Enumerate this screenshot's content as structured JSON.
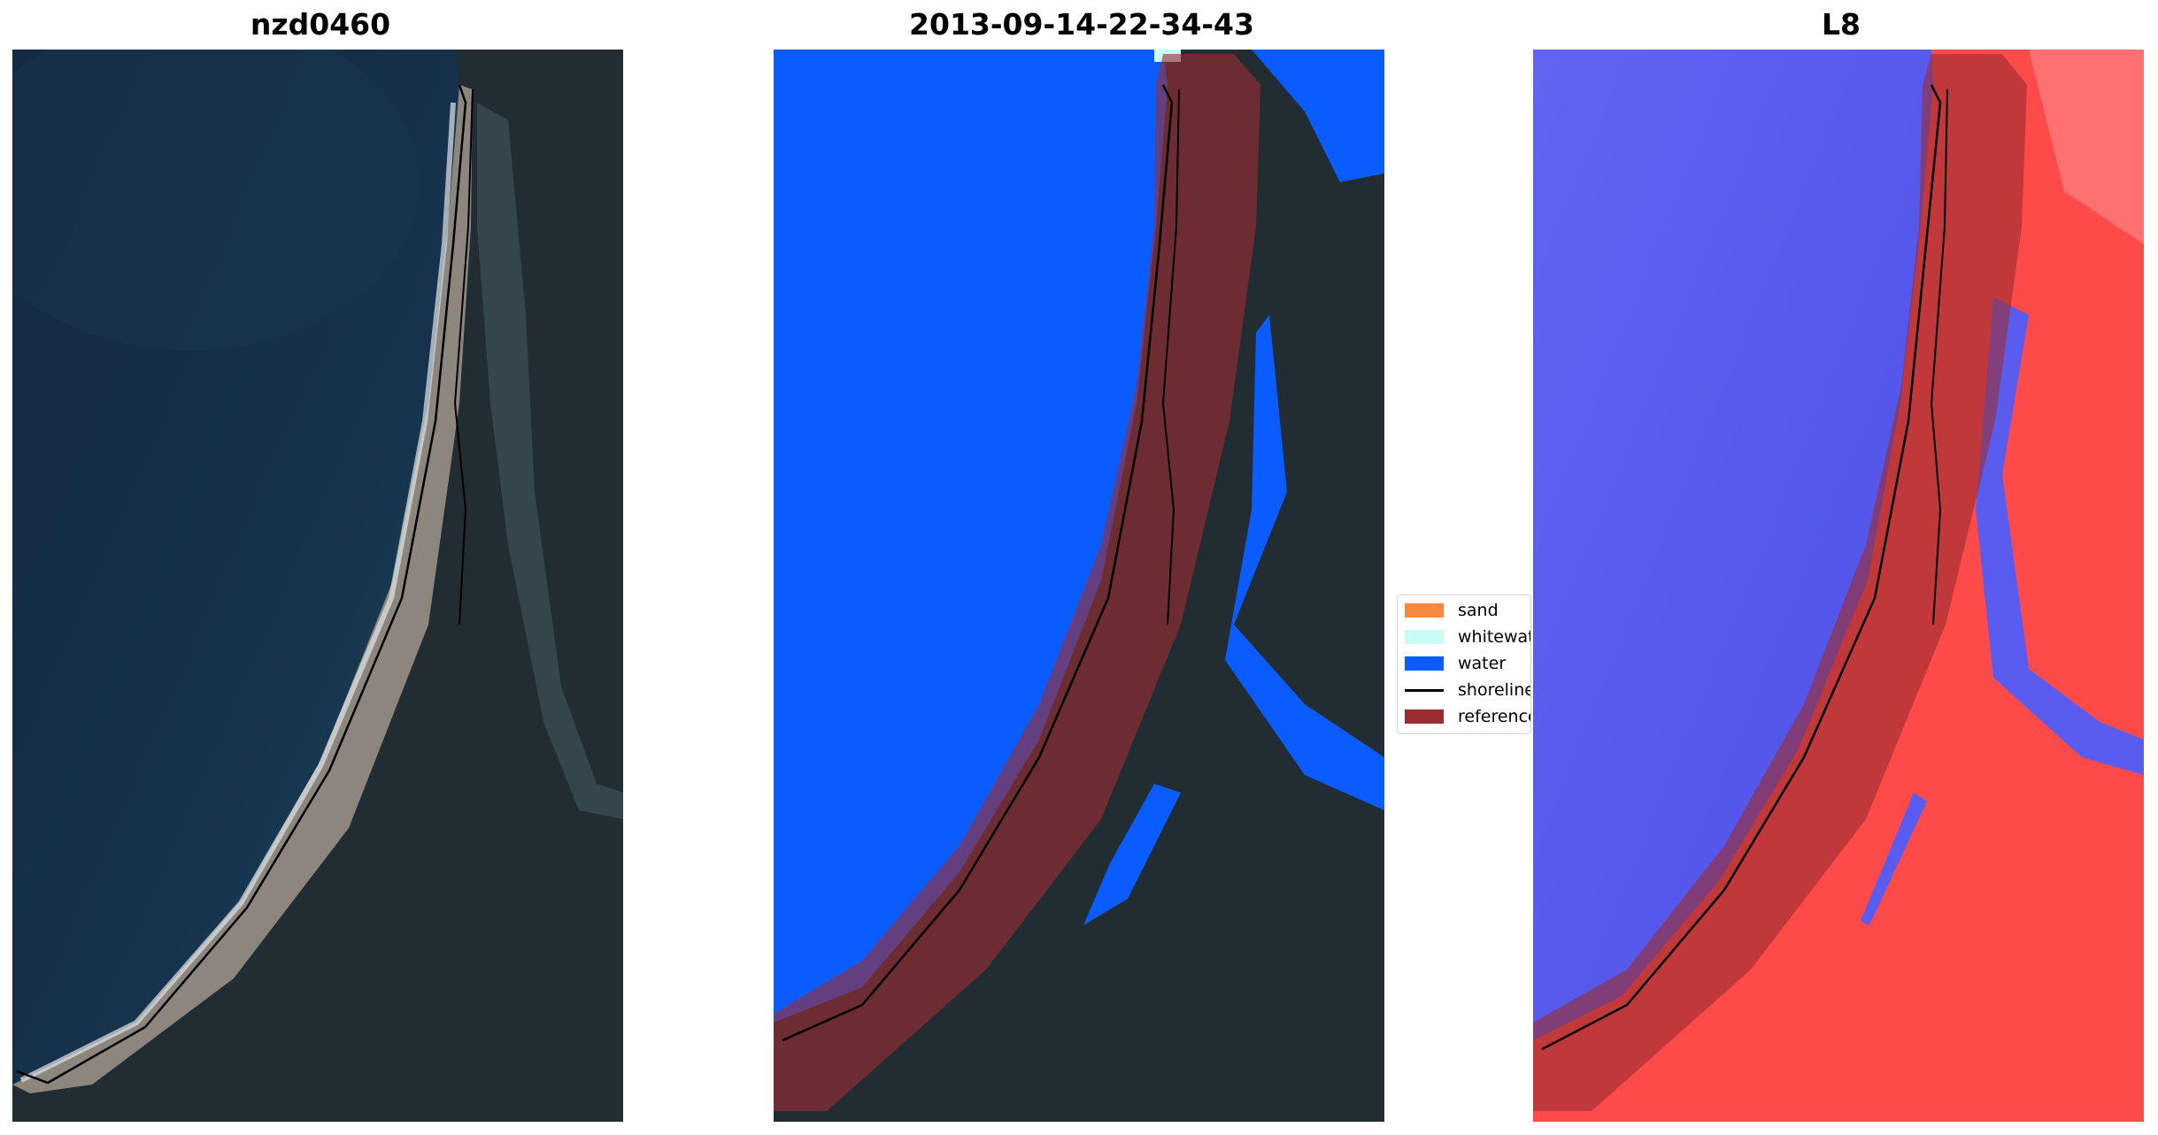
{
  "panels": [
    {
      "title": "nzd0460",
      "kind": "rgb"
    },
    {
      "title": "2013-09-14-22-34-43",
      "kind": "classification"
    },
    {
      "title": "L8",
      "kind": "index"
    }
  ],
  "legend": {
    "items": [
      {
        "label": "sand",
        "color": "#f58a3f",
        "type": "patch"
      },
      {
        "label": "whitewater",
        "color": "#c9fbf6",
        "type": "patch"
      },
      {
        "label": "water",
        "color": "#0a5cff",
        "type": "patch"
      },
      {
        "label": "shoreline",
        "color": "#000000",
        "type": "line"
      },
      {
        "label": "reference",
        "color": "#9b2d30",
        "type": "patch"
      }
    ]
  },
  "colors": {
    "ocean": "#12263e",
    "land": "#1f2a33",
    "sand": "#8a847c",
    "class_water": "#0a5cff",
    "reference_buffer": "#9b2d30",
    "index_water": "#5a5cf0",
    "index_land": "#ff4040"
  }
}
